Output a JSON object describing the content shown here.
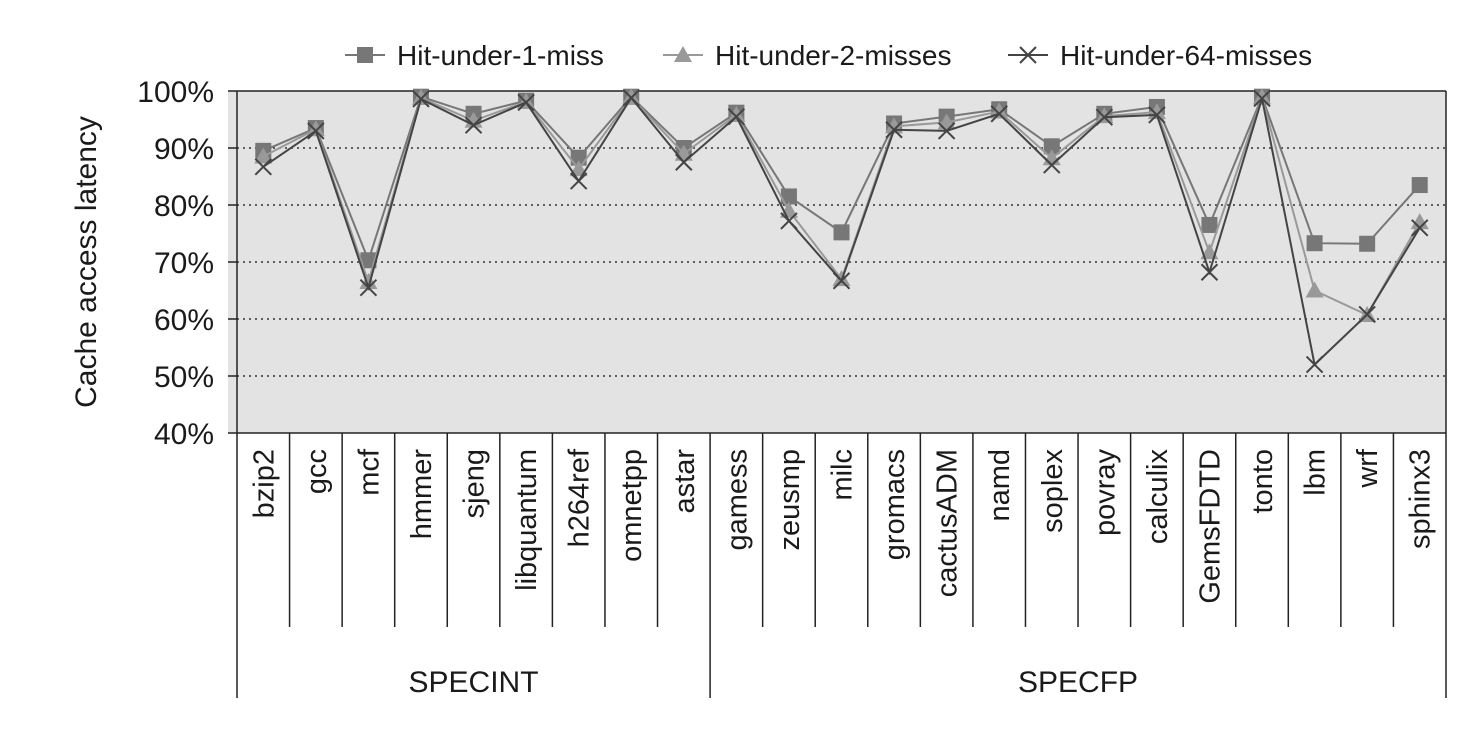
{
  "chart_data": {
    "type": "line",
    "ylabel": "Cache access latency",
    "ylim": [
      40,
      100
    ],
    "yticks": [
      "40%",
      "50%",
      "60%",
      "70%",
      "80%",
      "90%",
      "100%"
    ],
    "grid": "horizontal dotted",
    "legend_position": "top",
    "categories": [
      "bzip2",
      "gcc",
      "mcf",
      "hmmer",
      "sjeng",
      "libquantum",
      "h264ref",
      "omnetpp",
      "astar",
      "gamess",
      "zeusmp",
      "milc",
      "gromacs",
      "cactusADM",
      "namd",
      "soplex",
      "povray",
      "calculix",
      "GemsFDTD",
      "tonto",
      "lbm",
      "wrf",
      "sphinx3"
    ],
    "groups": [
      {
        "name": "SPECINT",
        "count": 9
      },
      {
        "name": "SPECFP",
        "count": 14
      }
    ],
    "series": [
      {
        "name": "Hit-under-1-miss",
        "marker": "square",
        "color": "#777777",
        "values": [
          89.5,
          93.5,
          70.3,
          99,
          96,
          98.3,
          88.3,
          99,
          90,
          96.2,
          81.5,
          75.2,
          94.3,
          95.5,
          96.8,
          90.3,
          96,
          97.2,
          76.5,
          99,
          73.3,
          73.2,
          83.5
        ]
      },
      {
        "name": "Hit-under-2-misses",
        "marker": "triangle",
        "color": "#999999",
        "values": [
          88.5,
          93.3,
          66.5,
          98.8,
          94.8,
          98.1,
          86.3,
          98.9,
          89,
          95.8,
          79,
          67,
          93.8,
          94.5,
          96.4,
          88.2,
          95.6,
          96.3,
          71.7,
          98.9,
          65,
          60.7,
          77
        ]
      },
      {
        "name": "Hit-under-64-misses",
        "marker": "x",
        "color": "#444444",
        "values": [
          86.7,
          93,
          65.5,
          98.6,
          94,
          98,
          84.2,
          98.8,
          87.5,
          95.5,
          77.2,
          66.7,
          93.2,
          93,
          96,
          87,
          95.4,
          95.8,
          68.2,
          98.7,
          52,
          60.8,
          76
        ]
      }
    ]
  }
}
